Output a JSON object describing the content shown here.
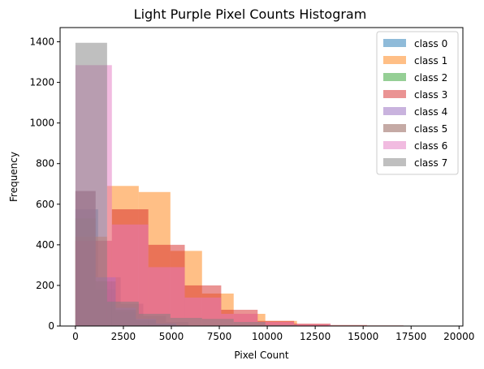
{
  "chart_data": {
    "type": "bar",
    "title": "Light Purple Pixel Counts Histogram",
    "xlabel": "Pixel Count",
    "ylabel": "Frequency",
    "xlim": [
      -800,
      20200
    ],
    "ylim": [
      0,
      1470
    ],
    "xticks": [
      0,
      2500,
      5000,
      7500,
      10000,
      12500,
      15000,
      17500,
      20000
    ],
    "yticks": [
      0,
      200,
      400,
      600,
      800,
      1000,
      1200,
      1400
    ],
    "grid": false,
    "legend_position": "top-right",
    "opacity": 0.5,
    "series": [
      {
        "name": "class 0",
        "color": "#1f77b4",
        "bins": [
          [
            0,
            1180,
            575
          ],
          [
            1180,
            2360,
            240
          ],
          [
            2360,
            3540,
            110
          ],
          [
            3540,
            4720,
            50
          ],
          [
            4720,
            5900,
            20
          ]
        ]
      },
      {
        "name": "class 1",
        "color": "#ff7f0e",
        "bins": [
          [
            0,
            1650,
            440
          ],
          [
            1650,
            3300,
            690
          ],
          [
            3300,
            4950,
            660
          ],
          [
            4950,
            6600,
            370
          ],
          [
            6600,
            8250,
            160
          ],
          [
            8250,
            9900,
            60
          ],
          [
            9900,
            11550,
            25
          ],
          [
            11550,
            13200,
            8
          ]
        ]
      },
      {
        "name": "class 2",
        "color": "#2ca02c",
        "bins": [
          [
            0,
            1050,
            530
          ],
          [
            1050,
            2100,
            180
          ],
          [
            2100,
            3150,
            70
          ],
          [
            3150,
            4200,
            30
          ],
          [
            4200,
            5250,
            12
          ]
        ]
      },
      {
        "name": "class 3",
        "color": "#d62728",
        "bins": [
          [
            0,
            1900,
            420
          ],
          [
            1900,
            3800,
            575
          ],
          [
            3800,
            5700,
            400
          ],
          [
            5700,
            7600,
            200
          ],
          [
            7600,
            9500,
            80
          ],
          [
            9500,
            11400,
            25
          ],
          [
            11400,
            13300,
            12
          ],
          [
            13300,
            15200,
            5
          ],
          [
            15200,
            17100,
            3
          ],
          [
            17100,
            19000,
            1
          ]
        ]
      },
      {
        "name": "class 4",
        "color": "#9467bd",
        "bins": [
          [
            0,
            1050,
            665
          ],
          [
            1050,
            2100,
            240
          ],
          [
            2100,
            3150,
            90
          ],
          [
            3150,
            4200,
            35
          ],
          [
            4200,
            5250,
            12
          ]
        ]
      },
      {
        "name": "class 5",
        "color": "#8c564b",
        "bins": [
          [
            0,
            1050,
            665
          ],
          [
            1050,
            2100,
            220
          ],
          [
            2100,
            3150,
            80
          ],
          [
            3150,
            4200,
            30
          ],
          [
            4200,
            5250,
            10
          ]
        ]
      },
      {
        "name": "class 6",
        "color": "#e377c2",
        "bins": [
          [
            0,
            1900,
            1285
          ],
          [
            1900,
            3800,
            500
          ],
          [
            3800,
            5700,
            290
          ],
          [
            5700,
            7600,
            140
          ],
          [
            7600,
            9500,
            60
          ],
          [
            9500,
            11400,
            20
          ],
          [
            11400,
            13300,
            8
          ]
        ]
      },
      {
        "name": "class 7",
        "color": "#7f7f7f",
        "bins": [
          [
            0,
            1650,
            1395
          ],
          [
            1650,
            3300,
            120
          ],
          [
            3300,
            4950,
            60
          ],
          [
            4950,
            6600,
            40
          ],
          [
            6600,
            8250,
            35
          ],
          [
            8250,
            9900,
            20
          ],
          [
            9900,
            11550,
            5
          ]
        ]
      }
    ]
  }
}
